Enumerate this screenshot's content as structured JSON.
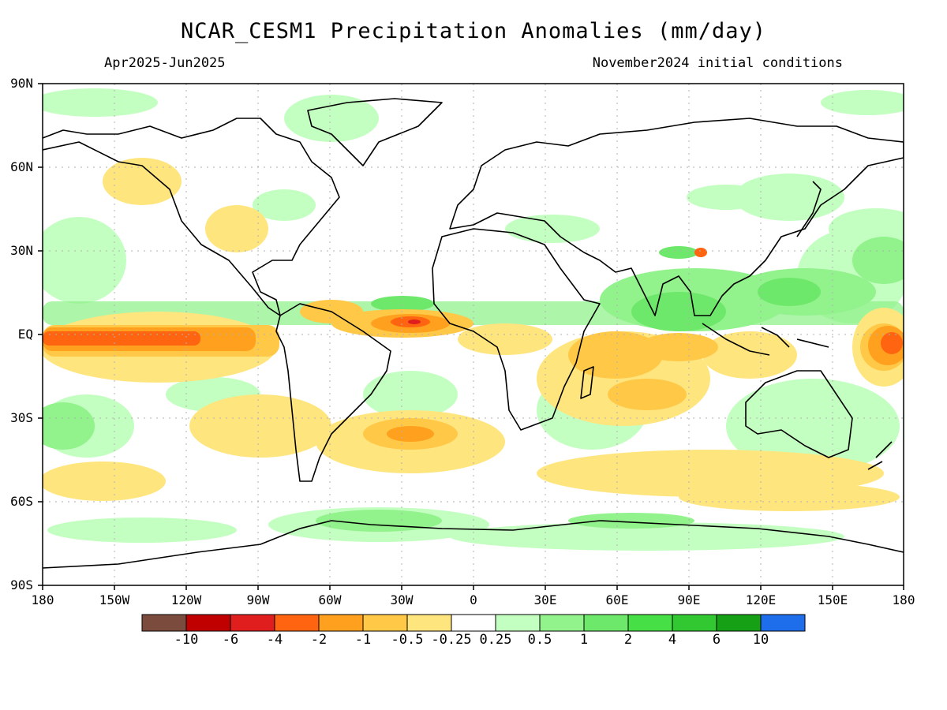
{
  "header": {
    "title": "NCAR_CESM1 Precipitation Anomalies (mm/day)",
    "period": "Apr2025-Jun2025",
    "init": "November2024 initial conditions"
  },
  "axes": {
    "lat_labels": [
      "90N",
      "60N",
      "30N",
      "EQ",
      "30S",
      "60S",
      "90S"
    ],
    "lon_labels": [
      "180",
      "150W",
      "120W",
      "90W",
      "60W",
      "30W",
      "0",
      "30E",
      "60E",
      "90E",
      "120E",
      "150E",
      "180"
    ]
  },
  "colorbar": {
    "colors": [
      "#7b4b3e",
      "#c00000",
      "#e01e1e",
      "#ff6410",
      "#ffa11e",
      "#ffc847",
      "#ffe57e",
      "#ffffff",
      "#c3ffc0",
      "#92f28c",
      "#6de86a",
      "#46e046",
      "#31c831",
      "#15a015",
      "#1e6eeb"
    ],
    "labels": [
      "-10",
      "-6",
      "-4",
      "-2",
      "-1",
      "-0.5",
      "-0.25",
      "0.25",
      "0.5",
      "1",
      "2",
      "4",
      "6",
      "10"
    ]
  }
}
